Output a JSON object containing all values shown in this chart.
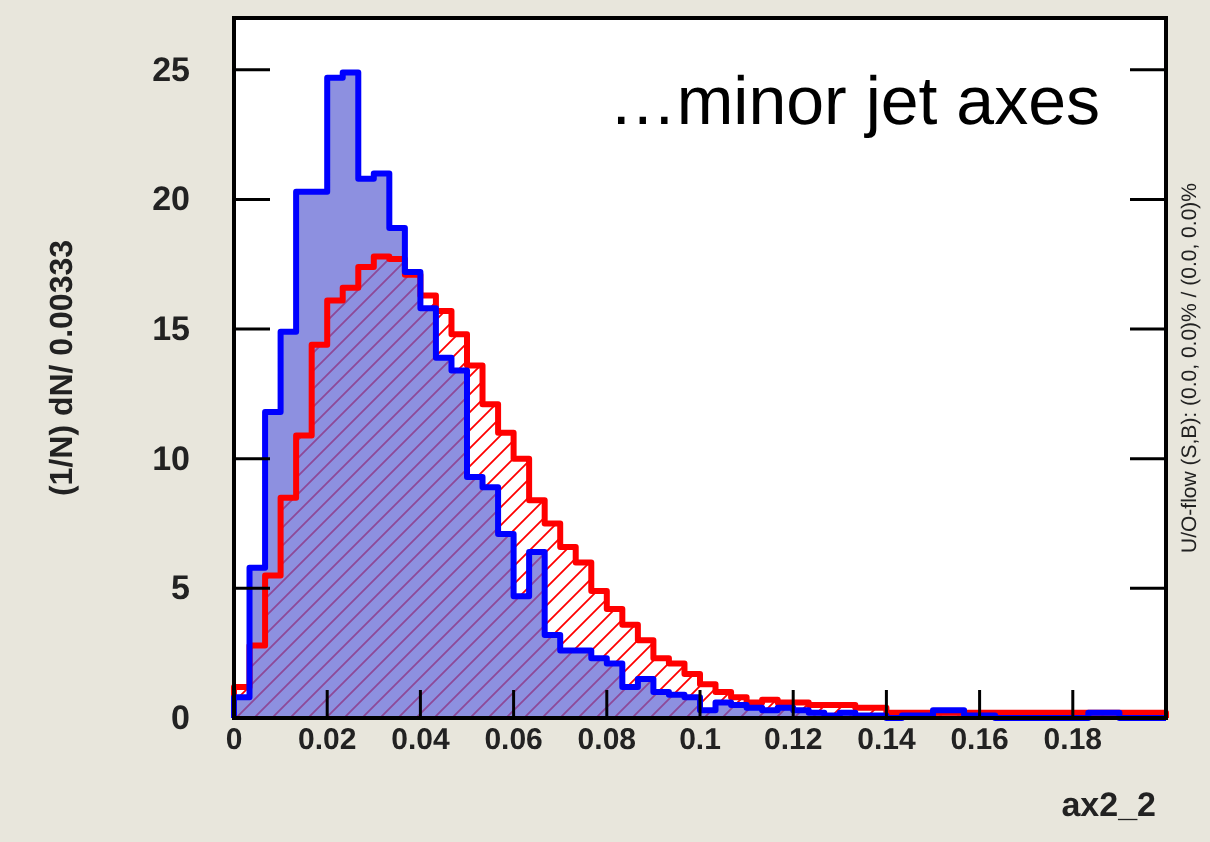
{
  "chart_data": {
    "type": "histogram",
    "title": "…minor jet axes",
    "xlabel": "ax2_2",
    "ylabel": "(1/N) dN/ 0.00333",
    "annotations": [
      "U/O-flow (S,B): (0.0, 0.0)% / (0.0, 0.0)%"
    ],
    "bins": [
      0,
      0.00333,
      0.00667,
      0.01,
      0.01333,
      0.01667,
      0.02,
      0.02333,
      0.02667,
      0.03,
      0.03333,
      0.03667,
      0.04,
      0.04333,
      0.04667,
      0.05,
      0.05333,
      0.05667,
      0.06,
      0.06333,
      0.06667,
      0.07,
      0.07333,
      0.07667,
      0.08,
      0.08333,
      0.08667,
      0.09,
      0.09333,
      0.09667,
      0.1,
      0.10333,
      0.10667,
      0.11,
      0.11333,
      0.11667,
      0.12,
      0.12333,
      0.12667,
      0.13,
      0.13333,
      0.13667,
      0.14,
      0.14333,
      0.14667,
      0.15,
      0.15333,
      0.15667,
      0.16,
      0.16333,
      0.16667,
      0.17,
      0.17333,
      0.17667,
      0.18,
      0.18333,
      0.18667,
      0.19,
      0.19333,
      0.19667,
      0.2
    ],
    "series": [
      {
        "color": "#0000ff",
        "values": [
          0.8,
          5.8,
          11.8,
          14.9,
          20.3,
          20.3,
          24.7,
          24.9,
          20.8,
          21.0,
          18.9,
          17.2,
          15.8,
          13.9,
          13.4,
          9.3,
          8.9,
          7.1,
          4.7,
          6.4,
          3.2,
          2.6,
          2.6,
          2.3,
          2.1,
          1.2,
          1.5,
          1.0,
          0.9,
          0.8,
          0.3,
          0.6,
          0.5,
          0.4,
          0.3,
          0.4,
          0.3,
          0.2,
          0.1,
          0.2,
          0.1,
          0.1,
          0,
          0.1,
          0.1,
          0.3,
          0.3,
          0.1,
          0.1,
          0,
          0,
          0,
          0,
          0,
          0,
          0.2,
          0.2,
          0,
          0,
          0
        ]
      },
      {
        "color": "#ff0000",
        "values": [
          1.2,
          2.8,
          5.5,
          8.5,
          10.9,
          14.4,
          16.1,
          16.6,
          17.4,
          17.8,
          17.7,
          17.1,
          16.3,
          15.7,
          14.8,
          13.6,
          12.1,
          11.0,
          10.0,
          8.4,
          7.5,
          6.6,
          6.0,
          4.9,
          4.2,
          3.6,
          3.0,
          2.3,
          2.1,
          1.7,
          1.3,
          1.0,
          0.8,
          0.6,
          0.7,
          0.6,
          0.6,
          0.5,
          0.5,
          0.5,
          0.4,
          0.4,
          0.2,
          0.2,
          0.2,
          0.2,
          0.2,
          0.2,
          0.2,
          0.2,
          0.2,
          0.2,
          0.2,
          0.2,
          0.2,
          0.2,
          0.2,
          0.2,
          0.2,
          0.2
        ]
      }
    ],
    "xlim": [
      0,
      0.2
    ],
    "xticks": [
      0,
      0.02,
      0.04,
      0.06,
      0.08,
      0.1,
      0.12,
      0.14,
      0.16,
      0.18
    ],
    "ylim": [
      0,
      27
    ],
    "yticks": [
      0,
      5,
      10,
      15,
      20,
      25
    ],
    "grid": false,
    "legend": false
  }
}
